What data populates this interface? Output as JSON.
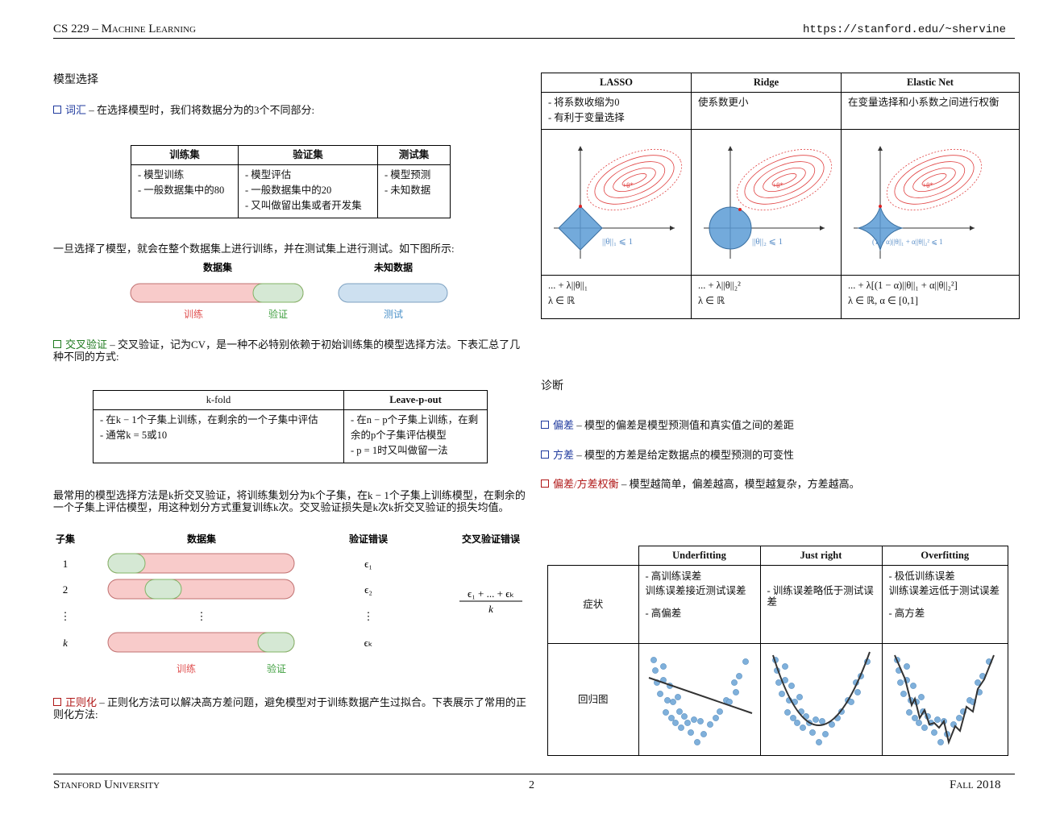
{
  "header": {
    "left": "CS 229 – Machine Learning",
    "right": "https://stanford.edu/~shervine"
  },
  "footer": {
    "left": "Stanford University",
    "page": "2",
    "right": "Fall 2018"
  },
  "model_selection": {
    "title": "模型选择",
    "vocabulary": {
      "term": "词汇",
      "text": " – 在选择模型时，我们将数据分为的3个不同部分:"
    },
    "split_table": {
      "headers": [
        "训练集",
        "验证集",
        "测试集"
      ],
      "cells": [
        [
          "- 模型训练",
          "- 一般数据集中的80"
        ],
        [
          "- 模型评估",
          "- 一般数据集中的20",
          "- 又叫做留出集或者开发集"
        ],
        [
          "- 模型预测",
          "- 未知数据"
        ]
      ]
    },
    "after_selection": "一旦选择了模型，就会在整个数据集上进行训练，并在测试集上进行测试。如下图所示:",
    "split_figure": {
      "dataset": "数据集",
      "unknown": "未知数据",
      "train": "训练",
      "validation": "验证",
      "test": "测试"
    },
    "cross_validation": {
      "term": "交叉验证",
      "text": " – 交叉验证，记为CV，是一种不必特别依赖于初始训练集的模型选择方法。下表汇总了几种不同的方式:"
    },
    "cv_table": {
      "headers": [
        "k-fold",
        "Leave-p-out"
      ],
      "cells": [
        [
          "- 在k − 1个子集上训练，在剩余的一个子集中评估",
          "- 通常k = 5或10"
        ],
        [
          "- 在n − p个子集上训练，在剩余的p个子集评估模型",
          "- p = 1时又叫做留一法"
        ]
      ]
    },
    "kfold_text": "最常用的模型选择方法是k折交叉验证，将训练集划分为k个子集，在k − 1个子集上训练模型，在剩余的一个子集上评估模型，用这种划分方式重复训练k次。交叉验证损失是k次k折交叉验证的损失均值。",
    "kfold_figure": {
      "headers": [
        "子集",
        "数据集",
        "验证错误",
        "交叉验证错误"
      ],
      "rows": [
        "1",
        "2",
        "⋮",
        "k"
      ],
      "dots": "⋮",
      "errors": [
        "ϵ₁",
        "ϵ₂",
        "⋮",
        "ϵₖ"
      ],
      "formula_numerator": "ϵ₁ + ... + ϵₖ",
      "formula_denominator": "k",
      "train": "训练",
      "validation": "验证"
    },
    "regularization": {
      "term": "正则化",
      "text": " – 正则化方法可以解决高方差问题，避免模型对于训练数据产生过拟合。下表展示了常用的正则化方法:"
    }
  },
  "reg_table": {
    "headers": [
      "LASSO",
      "Ridge",
      "Elastic Net"
    ],
    "descriptions": [
      [
        "- 将系数收缩为0",
        "- 有利于变量选择"
      ],
      [
        "使系数更小"
      ],
      [
        "在变量选择和小系数之间进行权衡"
      ]
    ],
    "plot_labels": [
      "||θ||₁ ⩽ 1",
      "||θ||₂ ⩽ 1",
      "(1 − α)||θ||₁ + α||θ||₂² ⩽ 1"
    ],
    "optimum": "+θ*",
    "formulas": [
      [
        "... + λ||θ||₁",
        "λ ∈ ℝ"
      ],
      [
        "... + λ||θ||₂²",
        "λ ∈ ℝ"
      ],
      [
        "... + λ[(1 − α)||θ||₁ + α||θ||₂²]",
        "λ ∈ ℝ,   α ∈ [0,1]"
      ]
    ]
  },
  "diagnostics": {
    "title": "诊断",
    "bias": {
      "term": "偏差",
      "text": " – 模型的偏差是模型预测值和真实值之间的差距"
    },
    "variance": {
      "term": "方差",
      "text": " – 模型的方差是给定数据点的模型预测的可变性"
    },
    "tradeoff": {
      "term": "偏差/方差权衡",
      "text": " – 模型越简单，偏差越高，模型越复杂，方差越高。"
    },
    "table": {
      "headers": [
        "Underfitting",
        "Just right",
        "Overfitting"
      ],
      "row_labels": [
        "症状",
        "回归图"
      ],
      "symptoms": [
        [
          "- 高训练误差",
          "训练误差接近测试误差",
          "- 高偏差"
        ],
        [
          "- 训练误差略低于测试误差"
        ],
        [
          "- 极低训练误差",
          "训练误差远低于测试误差",
          "- 高方差"
        ]
      ]
    }
  }
}
